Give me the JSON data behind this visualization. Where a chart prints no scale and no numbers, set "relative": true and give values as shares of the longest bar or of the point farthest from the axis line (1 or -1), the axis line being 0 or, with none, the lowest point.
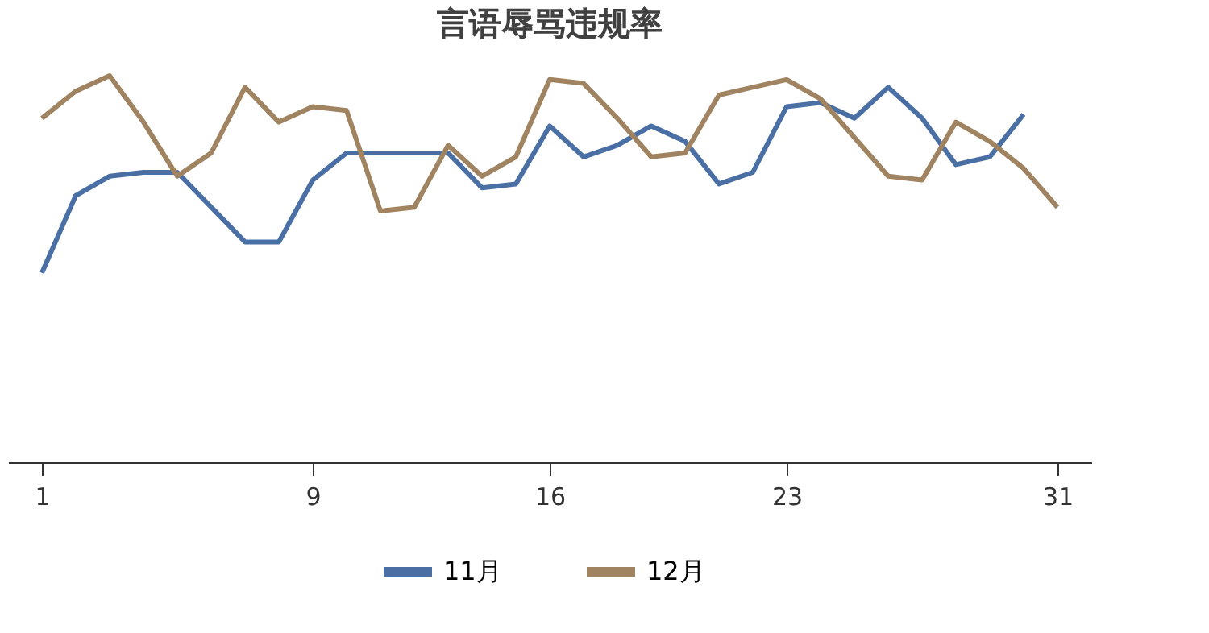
{
  "chart_data": {
    "type": "line",
    "title": "言语辱骂违规率",
    "relative": true,
    "legend": "bottom",
    "grid": false,
    "marker": "none",
    "line_style": "solid",
    "categories": [
      "1",
      null,
      null,
      null,
      null,
      null,
      null,
      null,
      "9",
      null,
      null,
      null,
      null,
      null,
      null,
      "16",
      null,
      null,
      null,
      null,
      null,
      null,
      "23",
      null,
      null,
      null,
      null,
      null,
      null,
      null,
      "31"
    ],
    "series": [
      {
        "name": "11月",
        "color": "#4a6fa5",
        "values": [
          0.49,
          0.69,
          0.74,
          0.75,
          0.75,
          0.66,
          0.57,
          0.57,
          0.73,
          0.8,
          0.8,
          0.8,
          0.8,
          0.71,
          0.72,
          0.87,
          0.79,
          0.82,
          0.87,
          0.83,
          0.72,
          0.75,
          0.92,
          0.93,
          0.89,
          0.97,
          0.89,
          0.77,
          0.79,
          0.9,
          null
        ]
      },
      {
        "name": "12月",
        "color": "#a08462",
        "values": [
          0.89,
          0.96,
          1,
          0.88,
          0.74,
          0.8,
          0.97,
          0.88,
          0.92,
          0.91,
          0.65,
          0.66,
          0.82,
          0.74,
          0.79,
          0.99,
          0.98,
          0.89,
          0.79,
          0.8,
          0.95,
          0.97,
          0.99,
          0.94,
          0.84,
          0.74,
          0.73,
          0.88,
          0.83,
          0.76,
          0.66
        ]
      }
    ]
  }
}
